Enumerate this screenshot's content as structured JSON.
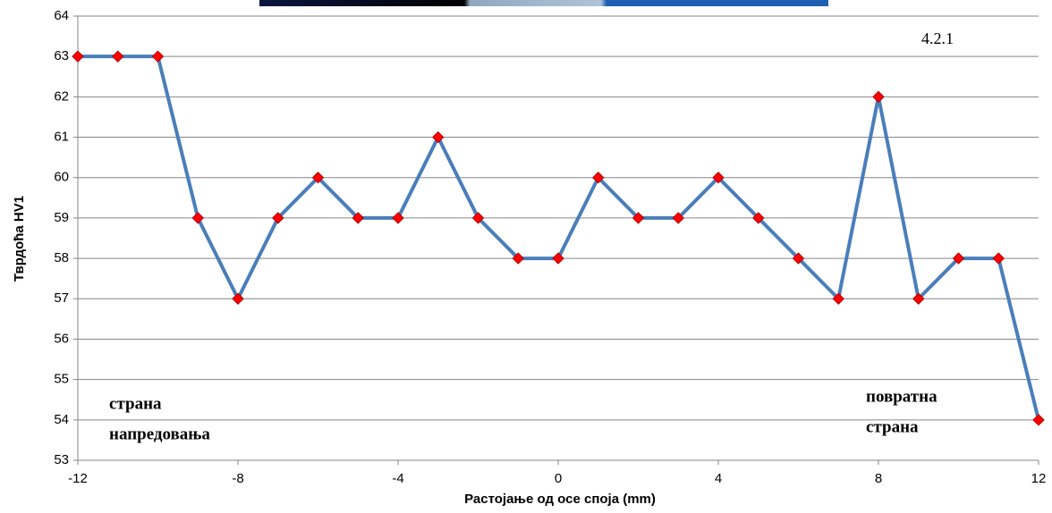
{
  "chart_data": {
    "type": "line",
    "x_label": "Растојање  од осе споја  (mm)",
    "y_label": "Тврдоћа  HV1",
    "x": [
      -12,
      -11,
      -10,
      -9,
      -8,
      -7,
      -6,
      -5,
      -4,
      -3,
      -2,
      -1,
      0,
      1,
      2,
      3,
      4,
      5,
      6,
      7,
      8,
      9,
      10,
      11,
      12
    ],
    "series": [
      {
        "color": "#4a7ebb",
        "marker_color": "#ff0000",
        "values": [
          63,
          63,
          63,
          59,
          57,
          59,
          60,
          59,
          59,
          61,
          59,
          58,
          58,
          60,
          59,
          59,
          60,
          59,
          58,
          57,
          62,
          57,
          58,
          58,
          54
        ]
      }
    ],
    "xlim": [
      -12,
      12
    ],
    "xticks": [
      -12,
      -8,
      -4,
      0,
      4,
      8,
      12
    ],
    "ylim": [
      53,
      64
    ],
    "yticks": [
      53,
      54,
      55,
      56,
      57,
      58,
      59,
      60,
      61,
      62,
      63,
      64
    ],
    "grid": true,
    "annotations": [
      {
        "lines": [
          "4.2.1"
        ]
      },
      {
        "lines": [
          "страна",
          "напредовања"
        ]
      },
      {
        "lines": [
          "повратна",
          "страна"
        ]
      }
    ]
  }
}
